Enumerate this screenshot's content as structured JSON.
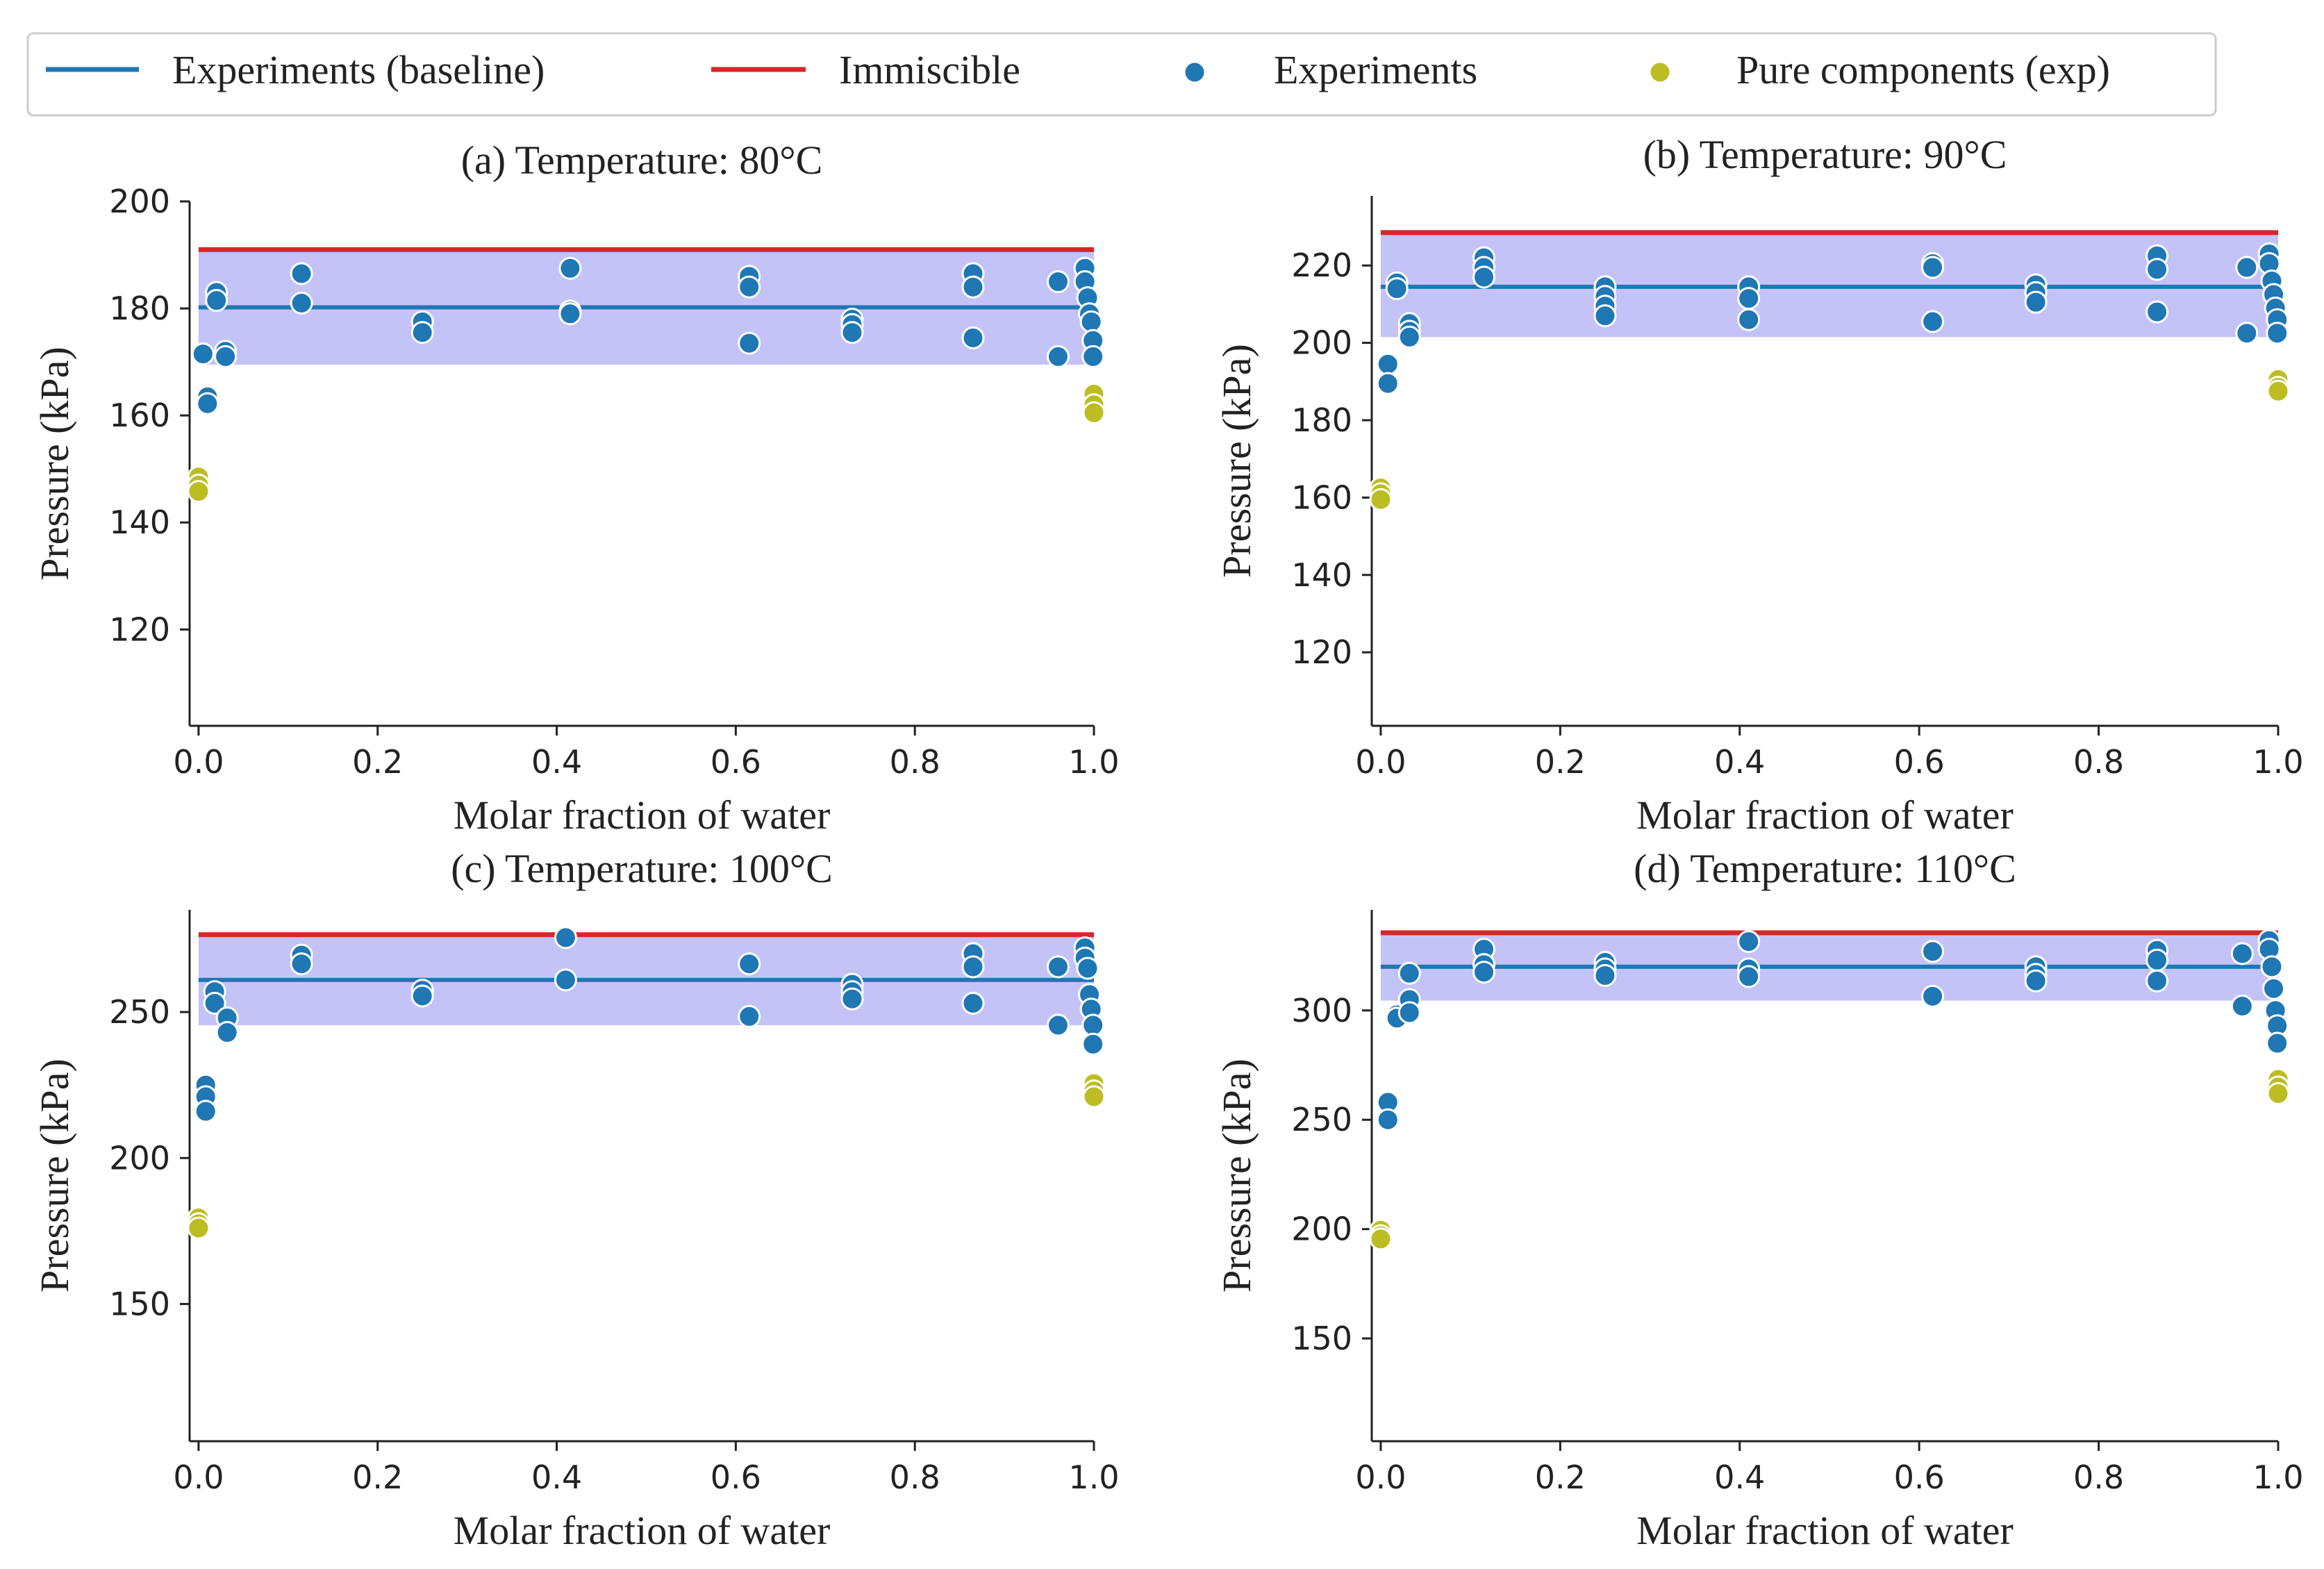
{
  "colors": {
    "baseline": "#1f77b4",
    "immiscible": "#d62728",
    "experiments": "#1f77b4",
    "pure": "#bcbd22",
    "band": "#7b7bf0"
  },
  "legend": {
    "items": [
      {
        "label": "Experiments (baseline)",
        "kind": "line",
        "color": "#1f77b4"
      },
      {
        "label": "Immiscible",
        "kind": "line",
        "color": "#d62728"
      },
      {
        "label": "Experiments",
        "kind": "marker",
        "color": "#1f77b4"
      },
      {
        "label": "Pure components (exp)",
        "kind": "marker",
        "color": "#bcbd22"
      }
    ]
  },
  "chart_data": [
    {
      "type": "scatter",
      "title": "(a) Temperature: 80°C",
      "xlabel": "Molar fraction of water",
      "ylabel": "Pressure (kPa)",
      "xlim": [
        -0.01,
        1.0
      ],
      "ylim": [
        102,
        200
      ],
      "xticks": [
        0.0,
        0.2,
        0.4,
        0.6,
        0.8,
        1.0
      ],
      "xtick_labels": [
        "0.0",
        "0.2",
        "0.4",
        "0.6",
        "0.8",
        "1.0"
      ],
      "yticks": [
        120,
        140,
        160,
        180,
        200
      ],
      "ytick_labels": [
        "120",
        "140",
        "160",
        "180",
        "200"
      ],
      "baseline": 180.2,
      "immiscible": 191.0,
      "band": [
        169.5,
        191.0
      ],
      "experiments": [
        [
          0.005,
          171.5
        ],
        [
          0.01,
          163.5
        ],
        [
          0.01,
          162.2
        ],
        [
          0.02,
          183.0
        ],
        [
          0.02,
          181.5
        ],
        [
          0.03,
          172.0
        ],
        [
          0.03,
          171.0
        ],
        [
          0.115,
          186.5
        ],
        [
          0.115,
          181.0
        ],
        [
          0.25,
          177.5
        ],
        [
          0.25,
          175.5
        ],
        [
          0.415,
          187.5
        ],
        [
          0.415,
          179.5
        ],
        [
          0.415,
          179.0
        ],
        [
          0.615,
          186.0
        ],
        [
          0.615,
          184.0
        ],
        [
          0.615,
          173.5
        ],
        [
          0.73,
          178.0
        ],
        [
          0.73,
          177.0
        ],
        [
          0.73,
          175.5
        ],
        [
          0.865,
          186.5
        ],
        [
          0.865,
          184.0
        ],
        [
          0.865,
          174.5
        ],
        [
          0.96,
          185.0
        ],
        [
          0.96,
          171.0
        ],
        [
          0.99,
          187.5
        ],
        [
          0.99,
          185.0
        ],
        [
          0.993,
          182.0
        ],
        [
          0.995,
          179.0
        ],
        [
          0.997,
          177.5
        ],
        [
          0.999,
          174.0
        ],
        [
          0.999,
          171.0
        ]
      ],
      "pure": [
        [
          0.0,
          148.5
        ],
        [
          0.0,
          147.0
        ],
        [
          0.0,
          145.8
        ],
        [
          1.0,
          164.0
        ],
        [
          1.0,
          162.0
        ],
        [
          1.0,
          160.5
        ]
      ]
    },
    {
      "type": "scatter",
      "title": "(b) Temperature: 90°C",
      "xlabel": "Molar fraction of water",
      "ylabel": "Pressure (kPa)",
      "xlim": [
        -0.01,
        1.0
      ],
      "ylim": [
        101,
        238
      ],
      "xticks": [
        0.0,
        0.2,
        0.4,
        0.6,
        0.8,
        1.0
      ],
      "xtick_labels": [
        "0.0",
        "0.2",
        "0.4",
        "0.6",
        "0.8",
        "1.0"
      ],
      "yticks": [
        120,
        140,
        160,
        180,
        200,
        220
      ],
      "ytick_labels": [
        "120",
        "140",
        "160",
        "180",
        "200",
        "220"
      ],
      "baseline": 214.5,
      "immiscible": 228.5,
      "band": [
        201.5,
        228.5
      ],
      "experiments": [
        [
          0.008,
          194.5
        ],
        [
          0.008,
          189.5
        ],
        [
          0.018,
          215.5
        ],
        [
          0.018,
          214.0
        ],
        [
          0.032,
          205.0
        ],
        [
          0.032,
          203.0
        ],
        [
          0.032,
          201.5
        ],
        [
          0.115,
          222.0
        ],
        [
          0.115,
          219.5
        ],
        [
          0.115,
          217.0
        ],
        [
          0.25,
          214.5
        ],
        [
          0.25,
          212.0
        ],
        [
          0.25,
          209.5
        ],
        [
          0.25,
          207.0
        ],
        [
          0.41,
          214.5
        ],
        [
          0.41,
          211.5
        ],
        [
          0.41,
          206.0
        ],
        [
          0.615,
          220.5
        ],
        [
          0.615,
          219.5
        ],
        [
          0.615,
          205.5
        ],
        [
          0.73,
          215.0
        ],
        [
          0.73,
          213.0
        ],
        [
          0.73,
          210.5
        ],
        [
          0.865,
          222.5
        ],
        [
          0.865,
          219.0
        ],
        [
          0.865,
          208.0
        ],
        [
          0.965,
          219.5
        ],
        [
          0.965,
          202.5
        ],
        [
          0.99,
          223.0
        ],
        [
          0.99,
          220.5
        ],
        [
          0.993,
          216.0
        ],
        [
          0.995,
          212.5
        ],
        [
          0.997,
          209.0
        ],
        [
          0.999,
          206.0
        ],
        [
          0.999,
          202.5
        ]
      ],
      "pure": [
        [
          0.0,
          162.5
        ],
        [
          0.0,
          161.0
        ],
        [
          0.0,
          159.5
        ],
        [
          1.0,
          190.5
        ],
        [
          1.0,
          188.5
        ],
        [
          1.0,
          187.5
        ]
      ]
    },
    {
      "type": "scatter",
      "title": "(c) Temperature: 100°C",
      "xlabel": "Molar fraction of water",
      "ylabel": "Pressure (kPa)",
      "xlim": [
        -0.01,
        1.0
      ],
      "ylim": [
        103,
        285
      ],
      "xticks": [
        0.0,
        0.2,
        0.4,
        0.6,
        0.8,
        1.0
      ],
      "xtick_labels": [
        "0.0",
        "0.2",
        "0.4",
        "0.6",
        "0.8",
        "1.0"
      ],
      "yticks": [
        150,
        200,
        250
      ],
      "ytick_labels": [
        "150",
        "200",
        "250"
      ],
      "baseline": 261.0,
      "immiscible": 276.5,
      "band": [
        245.5,
        276.5
      ],
      "experiments": [
        [
          0.008,
          225.0
        ],
        [
          0.008,
          221.0
        ],
        [
          0.008,
          216.0
        ],
        [
          0.018,
          257.0
        ],
        [
          0.018,
          253.0
        ],
        [
          0.032,
          248.0
        ],
        [
          0.032,
          243.0
        ],
        [
          0.115,
          269.5
        ],
        [
          0.115,
          266.5
        ],
        [
          0.25,
          257.5
        ],
        [
          0.25,
          255.5
        ],
        [
          0.41,
          275.5
        ],
        [
          0.41,
          261.0
        ],
        [
          0.615,
          266.5
        ],
        [
          0.615,
          248.5
        ],
        [
          0.73,
          259.5
        ],
        [
          0.73,
          257.0
        ],
        [
          0.73,
          254.5
        ],
        [
          0.865,
          270.0
        ],
        [
          0.865,
          265.5
        ],
        [
          0.865,
          253.0
        ],
        [
          0.96,
          265.5
        ],
        [
          0.96,
          245.5
        ],
        [
          0.99,
          272.0
        ],
        [
          0.99,
          268.5
        ],
        [
          0.993,
          265.0
        ],
        [
          0.995,
          256.0
        ],
        [
          0.997,
          251.0
        ],
        [
          0.999,
          245.5
        ],
        [
          0.999,
          239.0
        ]
      ],
      "pure": [
        [
          0.0,
          179.5
        ],
        [
          0.0,
          177.5
        ],
        [
          0.0,
          176.0
        ],
        [
          1.0,
          225.5
        ],
        [
          1.0,
          223.0
        ],
        [
          1.0,
          221.0
        ]
      ]
    },
    {
      "type": "scatter",
      "title": "(d) Temperature: 110°C",
      "xlabel": "Molar fraction of water",
      "ylabel": "Pressure (kPa)",
      "xlim": [
        -0.01,
        1.0
      ],
      "ylim": [
        103,
        346
      ],
      "xticks": [
        0.0,
        0.2,
        0.4,
        0.6,
        0.8,
        1.0
      ],
      "xtick_labels": [
        "0.0",
        "0.2",
        "0.4",
        "0.6",
        "0.8",
        "1.0"
      ],
      "yticks": [
        150,
        200,
        250,
        300
      ],
      "ytick_labels": [
        "150",
        "200",
        "250",
        "300"
      ],
      "baseline": 320.0,
      "immiscible": 335.5,
      "band": [
        304.5,
        335.5
      ],
      "experiments": [
        [
          0.008,
          258.0
        ],
        [
          0.008,
          250.0
        ],
        [
          0.018,
          298.0
        ],
        [
          0.018,
          296.5
        ],
        [
          0.032,
          317.0
        ],
        [
          0.032,
          305.0
        ],
        [
          0.032,
          299.0
        ],
        [
          0.115,
          328.0
        ],
        [
          0.115,
          321.0
        ],
        [
          0.115,
          317.5
        ],
        [
          0.25,
          322.0
        ],
        [
          0.25,
          319.0
        ],
        [
          0.25,
          316.0
        ],
        [
          0.41,
          331.5
        ],
        [
          0.41,
          319.0
        ],
        [
          0.41,
          315.5
        ],
        [
          0.615,
          327.0
        ],
        [
          0.615,
          306.5
        ],
        [
          0.73,
          320.0
        ],
        [
          0.73,
          316.5
        ],
        [
          0.73,
          313.5
        ],
        [
          0.865,
          327.5
        ],
        [
          0.865,
          323.0
        ],
        [
          0.865,
          313.5
        ],
        [
          0.96,
          326.0
        ],
        [
          0.96,
          302.0
        ],
        [
          0.99,
          332.0
        ],
        [
          0.99,
          328.0
        ],
        [
          0.993,
          320.0
        ],
        [
          0.995,
          310.0
        ],
        [
          0.997,
          300.0
        ],
        [
          0.999,
          293.0
        ],
        [
          0.999,
          285.0
        ]
      ],
      "pure": [
        [
          0.0,
          199.5
        ],
        [
          0.0,
          197.0
        ],
        [
          0.0,
          195.5
        ],
        [
          1.0,
          268.5
        ],
        [
          1.0,
          265.0
        ],
        [
          1.0,
          262.0
        ]
      ]
    }
  ]
}
